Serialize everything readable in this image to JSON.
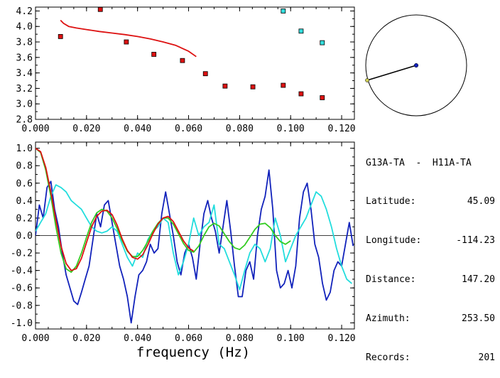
{
  "info": {
    "station_pair": "G13A-TA  -  H11A-TA",
    "rows": [
      {
        "label": "Latitude:",
        "value": "45.09"
      },
      {
        "label": "Longitude:",
        "value": "-114.23"
      },
      {
        "label": "Distance:",
        "value": "147.20"
      },
      {
        "label": "Azimuth:",
        "value": "253.50"
      },
      {
        "label": "Records:",
        "value": "201"
      }
    ]
  },
  "chart_data": [
    {
      "type": "scatter",
      "title": "",
      "xlabel": "",
      "ylabel": "",
      "xlim": [
        0.0,
        0.125
      ],
      "ylim": [
        2.8,
        4.25
      ],
      "xticks": [
        "0.000",
        "0.020",
        "0.040",
        "0.060",
        "0.080",
        "0.100",
        "0.120"
      ],
      "xtick_values": [
        0.0,
        0.02,
        0.04,
        0.06,
        0.08,
        0.1,
        0.12
      ],
      "yticks": [
        "2.8",
        "3.0",
        "3.2",
        "3.4",
        "3.6",
        "3.8",
        "4.0",
        "4.2"
      ],
      "ytick_values": [
        2.8,
        3.0,
        3.2,
        3.4,
        3.6,
        3.8,
        4.0,
        4.2
      ],
      "series": [
        {
          "kind": "points",
          "color": "#dd1111",
          "x": [
            0.0098,
            0.0254,
            0.0356,
            0.0464,
            0.0576,
            0.0666,
            0.0743,
            0.0852,
            0.0971,
            0.1041,
            0.1124
          ],
          "y": [
            3.87,
            4.22,
            3.8,
            3.64,
            3.56,
            3.39,
            3.23,
            3.22,
            3.24,
            3.13,
            3.08
          ]
        },
        {
          "kind": "points",
          "color": "#33dddd",
          "x": [
            0.0971,
            0.1041,
            0.1124
          ],
          "y": [
            4.2,
            3.94,
            3.79
          ]
        },
        {
          "kind": "line",
          "color": "#dd1111",
          "x": [
            0.0098,
            0.011,
            0.013,
            0.016,
            0.02,
            0.025,
            0.03,
            0.035,
            0.04,
            0.045,
            0.05,
            0.055,
            0.06,
            0.063
          ],
          "y": [
            4.08,
            4.04,
            4.0,
            3.98,
            3.96,
            3.935,
            3.915,
            3.895,
            3.87,
            3.84,
            3.8,
            3.755,
            3.68,
            3.61
          ]
        }
      ]
    },
    {
      "type": "line",
      "title": "",
      "xlabel": "frequency (Hz)",
      "ylabel": "",
      "xlim": [
        0.0,
        0.125
      ],
      "ylim": [
        -1.07,
        1.07
      ],
      "xticks": [
        "0.000",
        "0.020",
        "0.040",
        "0.060",
        "0.080",
        "0.100",
        "0.120"
      ],
      "xtick_values": [
        0.0,
        0.02,
        0.04,
        0.06,
        0.08,
        0.1,
        0.12
      ],
      "yticks": [
        "-1.0",
        "-0.8",
        "-0.6",
        "-0.4",
        "-0.2",
        "0.0",
        "0.2",
        "0.4",
        "0.6",
        "0.8",
        "1.0"
      ],
      "ytick_values": [
        -1.0,
        -0.8,
        -0.6,
        -0.4,
        -0.2,
        0.0,
        0.2,
        0.4,
        0.6,
        0.8,
        1.0
      ],
      "zero_line": true,
      "series": [
        {
          "color": "#1122bb",
          "x": [
            0.0,
            0.0015,
            0.003,
            0.0045,
            0.006,
            0.0075,
            0.009,
            0.0105,
            0.012,
            0.0135,
            0.015,
            0.0165,
            0.018,
            0.0195,
            0.021,
            0.0225,
            0.024,
            0.0255,
            0.027,
            0.0285,
            0.03,
            0.0315,
            0.033,
            0.0345,
            0.036,
            0.0375,
            0.039,
            0.0405,
            0.042,
            0.0435,
            0.045,
            0.0465,
            0.048,
            0.0495,
            0.051,
            0.0525,
            0.054,
            0.0555,
            0.057,
            0.0585,
            0.06,
            0.0615,
            0.063,
            0.0645,
            0.066,
            0.0675,
            0.069,
            0.0705,
            0.072,
            0.0735,
            0.075,
            0.0765,
            0.078,
            0.0795,
            0.081,
            0.0825,
            0.084,
            0.0855,
            0.087,
            0.0885,
            0.09,
            0.0915,
            0.093,
            0.0945,
            0.096,
            0.0975,
            0.099,
            0.1005,
            0.102,
            0.1035,
            0.105,
            0.1065,
            0.108,
            0.1095,
            0.111,
            0.1125,
            0.114,
            0.1155,
            0.117,
            0.1185,
            0.12,
            0.1215,
            0.123,
            0.1245
          ],
          "y": [
            0.0,
            0.35,
            0.2,
            0.55,
            0.62,
            0.3,
            0.1,
            -0.2,
            -0.45,
            -0.6,
            -0.75,
            -0.79,
            -0.65,
            -0.5,
            -0.35,
            -0.05,
            0.25,
            0.1,
            0.35,
            0.4,
            0.15,
            -0.1,
            -0.35,
            -0.5,
            -0.7,
            -1.0,
            -0.7,
            -0.45,
            -0.4,
            -0.3,
            -0.1,
            -0.2,
            -0.15,
            0.25,
            0.5,
            0.25,
            0.0,
            -0.3,
            -0.45,
            -0.2,
            -0.1,
            -0.25,
            -0.5,
            -0.1,
            0.25,
            0.4,
            0.2,
            0.05,
            -0.2,
            0.1,
            0.4,
            0.05,
            -0.35,
            -0.7,
            -0.7,
            -0.4,
            -0.3,
            -0.5,
            0.0,
            0.3,
            0.45,
            0.75,
            0.3,
            -0.4,
            -0.6,
            -0.55,
            -0.4,
            -0.6,
            -0.35,
            0.2,
            0.5,
            0.6,
            0.3,
            -0.1,
            -0.25,
            -0.55,
            -0.74,
            -0.65,
            -0.4,
            -0.3,
            -0.35,
            -0.1,
            0.15,
            -0.12
          ]
        },
        {
          "color": "#22dddd",
          "x": [
            0.0,
            0.002,
            0.004,
            0.006,
            0.008,
            0.01,
            0.012,
            0.014,
            0.016,
            0.018,
            0.02,
            0.022,
            0.024,
            0.026,
            0.028,
            0.03,
            0.032,
            0.034,
            0.036,
            0.038,
            0.04,
            0.042,
            0.044,
            0.046,
            0.048,
            0.05,
            0.052,
            0.054,
            0.056,
            0.058,
            0.06,
            0.062,
            0.064,
            0.066,
            0.068,
            0.07,
            0.072,
            0.074,
            0.076,
            0.078,
            0.08,
            0.082,
            0.084,
            0.086,
            0.088,
            0.09,
            0.092,
            0.094,
            0.096,
            0.098,
            0.1,
            0.102,
            0.104,
            0.106,
            0.108,
            0.11,
            0.112,
            0.114,
            0.116,
            0.118,
            0.12,
            0.122,
            0.124
          ],
          "y": [
            0.05,
            0.15,
            0.25,
            0.45,
            0.58,
            0.55,
            0.5,
            0.4,
            0.35,
            0.3,
            0.2,
            0.1,
            0.05,
            0.03,
            0.05,
            0.1,
            0.05,
            -0.1,
            -0.25,
            -0.35,
            -0.2,
            -0.25,
            -0.05,
            0.05,
            0.1,
            0.2,
            0.15,
            -0.2,
            -0.45,
            -0.3,
            -0.1,
            0.2,
            0.0,
            0.1,
            0.15,
            0.35,
            -0.1,
            -0.15,
            -0.3,
            -0.45,
            -0.62,
            -0.4,
            -0.2,
            -0.1,
            -0.15,
            -0.3,
            -0.15,
            0.2,
            0.0,
            -0.3,
            -0.15,
            0.0,
            0.1,
            0.2,
            0.35,
            0.5,
            0.45,
            0.3,
            0.1,
            -0.15,
            -0.35,
            -0.5,
            -0.55
          ]
        },
        {
          "color": "#33cc22",
          "x": [
            0.0,
            0.002,
            0.004,
            0.006,
            0.008,
            0.01,
            0.012,
            0.014,
            0.016,
            0.018,
            0.02,
            0.022,
            0.024,
            0.026,
            0.028,
            0.03,
            0.032,
            0.034,
            0.036,
            0.038,
            0.04,
            0.042,
            0.044,
            0.046,
            0.048,
            0.05,
            0.052,
            0.054,
            0.056,
            0.058,
            0.06,
            0.062,
            0.064,
            0.066,
            0.068,
            0.07,
            0.072,
            0.074,
            0.076,
            0.078,
            0.08,
            0.082,
            0.084,
            0.086,
            0.088,
            0.09,
            0.092,
            0.094,
            0.096,
            0.098,
            0.1
          ],
          "y": [
            1.0,
            0.95,
            0.75,
            0.45,
            0.1,
            -0.2,
            -0.38,
            -0.42,
            -0.35,
            -0.2,
            -0.02,
            0.15,
            0.26,
            0.3,
            0.28,
            0.2,
            0.08,
            -0.06,
            -0.18,
            -0.24,
            -0.24,
            -0.17,
            -0.07,
            0.05,
            0.14,
            0.2,
            0.2,
            0.13,
            0.02,
            -0.09,
            -0.17,
            -0.19,
            -0.12,
            0.0,
            0.1,
            0.14,
            0.11,
            0.02,
            -0.07,
            -0.14,
            -0.16,
            -0.11,
            -0.02,
            0.07,
            0.13,
            0.14,
            0.09,
            0.0,
            -0.07,
            -0.1,
            -0.06
          ]
        },
        {
          "color": "#dd1111",
          "x": [
            0.0,
            0.002,
            0.004,
            0.006,
            0.008,
            0.01,
            0.012,
            0.014,
            0.016,
            0.018,
            0.02,
            0.022,
            0.024,
            0.026,
            0.028,
            0.03,
            0.032,
            0.034,
            0.036,
            0.038,
            0.04,
            0.042,
            0.044,
            0.046,
            0.048,
            0.05,
            0.052,
            0.054,
            0.056,
            0.058,
            0.06,
            0.062
          ],
          "y": [
            1.0,
            0.96,
            0.78,
            0.5,
            0.18,
            -0.12,
            -0.32,
            -0.4,
            -0.38,
            -0.26,
            -0.08,
            0.1,
            0.22,
            0.28,
            0.29,
            0.24,
            0.12,
            -0.04,
            -0.17,
            -0.25,
            -0.27,
            -0.22,
            -0.11,
            0.02,
            0.13,
            0.2,
            0.22,
            0.16,
            0.05,
            -0.06,
            -0.14,
            -0.18
          ]
        }
      ]
    }
  ],
  "map": {
    "line_color": "#000000",
    "dot_center_color": "#1122bb",
    "dot_end_color": "#cccc55"
  }
}
